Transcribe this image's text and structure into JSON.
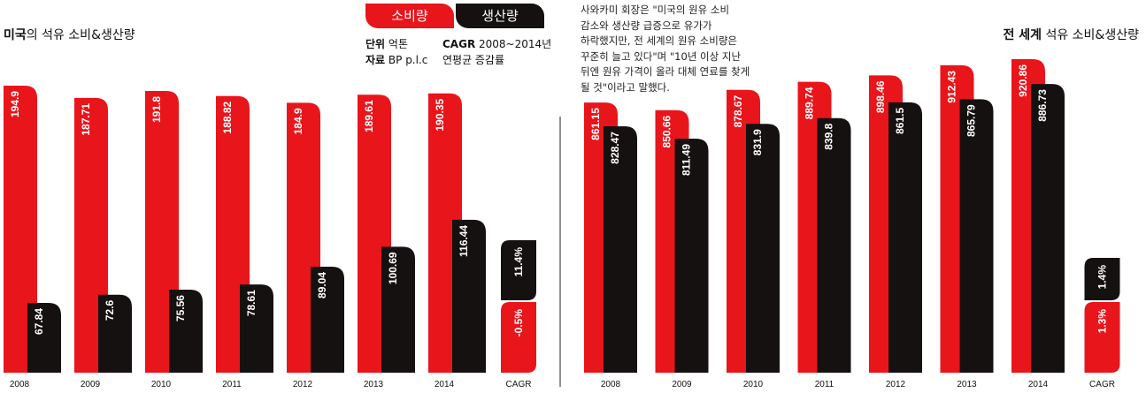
{
  "titles": {
    "us_bold": "미국",
    "us_rest": "의 석유 소비&생산량",
    "world_bold": "전 세계",
    "world_rest": " 석유 소비&생산량"
  },
  "legend": {
    "consumption": "소비량",
    "production": "생산량"
  },
  "info": {
    "unit_label": "단위",
    "unit_value": " 억톤",
    "source_label": "자료",
    "source_value": " BP p.l.c",
    "cagr_label": "CAGR",
    "cagr_value": " 2008~2014년",
    "cagr_desc": "연평균 증감률"
  },
  "quote": {
    "lines": [
      "사와카미 회장은 \"미국의 원유 소비",
      "감소와 생산량 급증으로 유가가",
      "하락했지만, 전 세계의 원유 소비량은",
      "꾸준히 늘고 있다\"며 \"10년 이상 지난",
      "뒤엔 원유 가격이 올라 대체 연료를 찾게",
      "될 것\"이라고 말했다."
    ]
  },
  "colors": {
    "consumption": "#e8151b",
    "production": "#151111",
    "label_on_red": "#ffffff",
    "label_on_black": "#ffffff"
  },
  "chart_data": [
    {
      "type": "bar",
      "title": "미국의 석유 소비&생산량",
      "categories": [
        "2008",
        "2009",
        "2010",
        "2011",
        "2012",
        "2013",
        "2014"
      ],
      "series": [
        {
          "name": "소비량",
          "values": [
            194.9,
            187.71,
            191.8,
            188.82,
            184.9,
            189.61,
            190.35
          ]
        },
        {
          "name": "생산량",
          "values": [
            67.84,
            72.6,
            75.56,
            78.61,
            89.04,
            100.69,
            116.44
          ]
        }
      ],
      "cagr": {
        "label": "CAGR",
        "consumption": "-0.5%",
        "production": "11.4%"
      },
      "ylabel": "억톤"
    },
    {
      "type": "bar",
      "title": "전 세계 석유 소비&생산량",
      "categories": [
        "2008",
        "2009",
        "2010",
        "2011",
        "2012",
        "2013",
        "2014"
      ],
      "series": [
        {
          "name": "소비량",
          "values": [
            861.15,
            850.66,
            878.67,
            889.74,
            898.46,
            912.43,
            920.86
          ]
        },
        {
          "name": "생산량",
          "values": [
            828.47,
            811.49,
            831.9,
            839.8,
            861.5,
            865.79,
            886.73
          ]
        }
      ],
      "cagr": {
        "label": "CAGR",
        "consumption": "1.3%",
        "production": "1.4%"
      },
      "ylabel": "억톤"
    }
  ]
}
